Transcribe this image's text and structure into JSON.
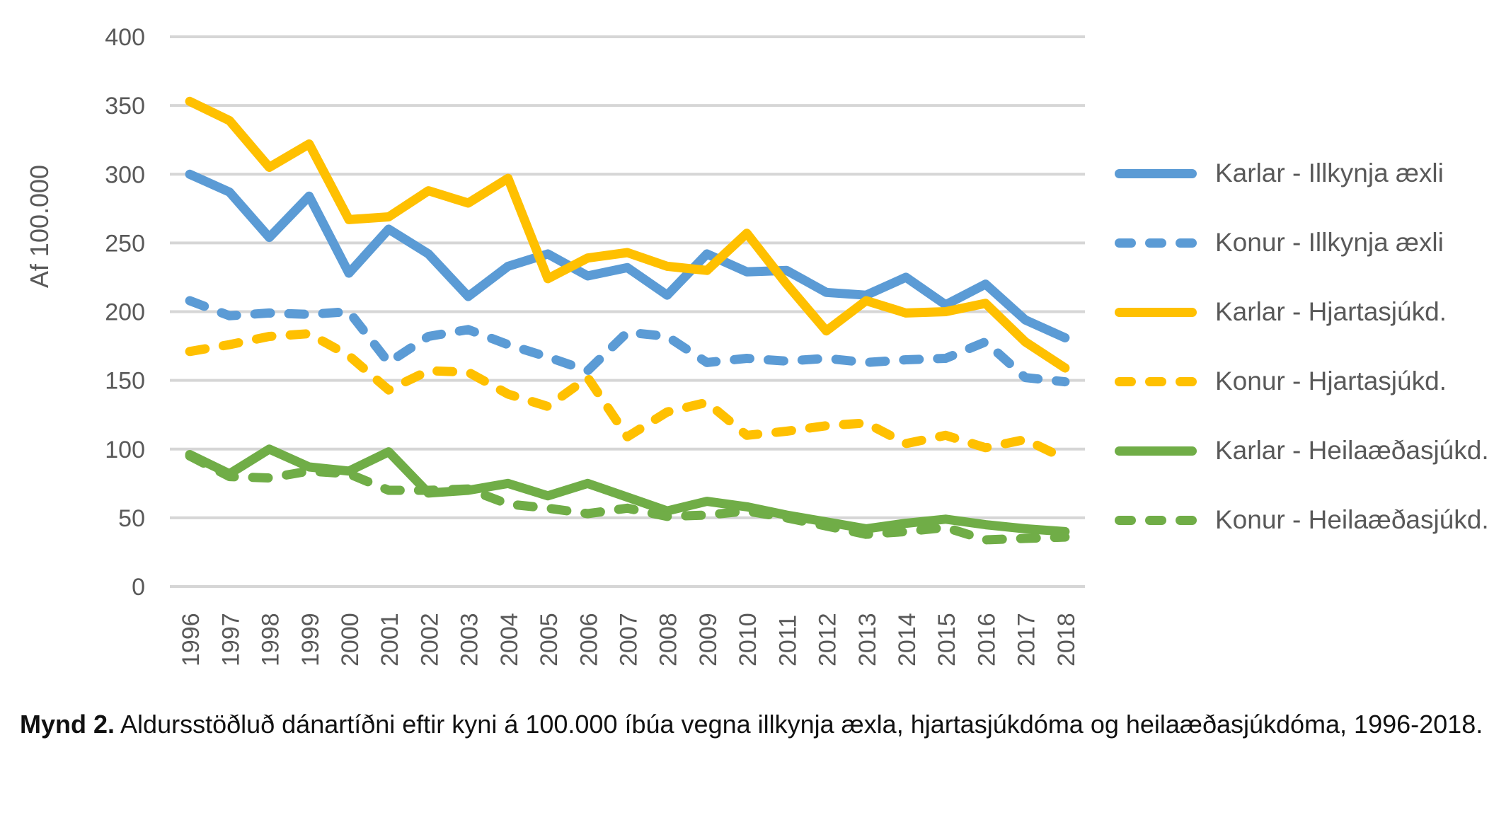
{
  "figure": {
    "y_axis_title": "Af 100.000",
    "caption_bold": "Mynd 2.",
    "caption_rest": " Aldursstöðluð dánartíðni eftir kyni á 100.000 íbúa vegna illkynja æxla, hjartasjúkdóma og heilaæðasjúkdóma, 1996-2018."
  },
  "colors": {
    "blue": "#5B9BD5",
    "yellow": "#FFC000",
    "green": "#70AD47",
    "gridline": "#D6D6D6",
    "tick_text": "#595959"
  },
  "chart_data": {
    "type": "line",
    "x": [
      "1996",
      "1997",
      "1998",
      "1999",
      "2000",
      "2001",
      "2002",
      "2003",
      "2004",
      "2005",
      "2006",
      "2007",
      "2008",
      "2009",
      "2010",
      "2011",
      "2012",
      "2013",
      "2014",
      "2015",
      "2016",
      "2017",
      "2018"
    ],
    "ylim": [
      0,
      400
    ],
    "y_ticks": [
      "0",
      "50",
      "100",
      "150",
      "200",
      "250",
      "300",
      "350",
      "400"
    ],
    "grid": true,
    "legend_position": "right",
    "ylabel": "Af 100.000",
    "series": [
      {
        "name": "Karlar -  Illkynja æxli",
        "color": "#5B9BD5",
        "dash": false,
        "values": [
          300,
          287,
          254,
          284,
          228,
          260,
          242,
          211,
          233,
          242,
          226,
          232,
          212,
          242,
          229,
          230,
          214,
          212,
          225,
          205,
          220,
          194,
          181
        ]
      },
      {
        "name": "Konur -  Illkynja æxli",
        "color": "#5B9BD5",
        "dash": true,
        "values": [
          208,
          197,
          199,
          198,
          200,
          163,
          182,
          187,
          176,
          167,
          157,
          185,
          182,
          163,
          166,
          164,
          166,
          163,
          165,
          166,
          178,
          152,
          149
        ]
      },
      {
        "name": "Karlar -  Hjartasjúkd.",
        "color": "#FFC000",
        "dash": false,
        "values": [
          353,
          339,
          305,
          322,
          267,
          269,
          288,
          279,
          297,
          224,
          239,
          243,
          233,
          230,
          257,
          220,
          186,
          208,
          199,
          200,
          206,
          178,
          159
        ]
      },
      {
        "name": "Konur -  Hjartasjúkd.",
        "color": "#FFC000",
        "dash": true,
        "values": [
          171,
          176,
          182,
          184,
          168,
          143,
          157,
          156,
          140,
          131,
          152,
          109,
          127,
          134,
          110,
          113,
          117,
          119,
          104,
          110,
          101,
          107,
          93
        ]
      },
      {
        "name": "Karlar -  Heilaæðasjúkd.",
        "color": "#70AD47",
        "dash": false,
        "values": [
          96,
          82,
          100,
          87,
          84,
          98,
          68,
          70,
          75,
          66,
          75,
          65,
          55,
          62,
          58,
          52,
          47,
          42,
          46,
          49,
          45,
          42,
          40
        ]
      },
      {
        "name": "Konur -  Heilaæðasjúkd.",
        "color": "#70AD47",
        "dash": true,
        "values": [
          95,
          80,
          79,
          84,
          82,
          70,
          70,
          71,
          60,
          57,
          53,
          57,
          51,
          52,
          55,
          50,
          44,
          38,
          40,
          43,
          34,
          35,
          36
        ]
      }
    ]
  }
}
